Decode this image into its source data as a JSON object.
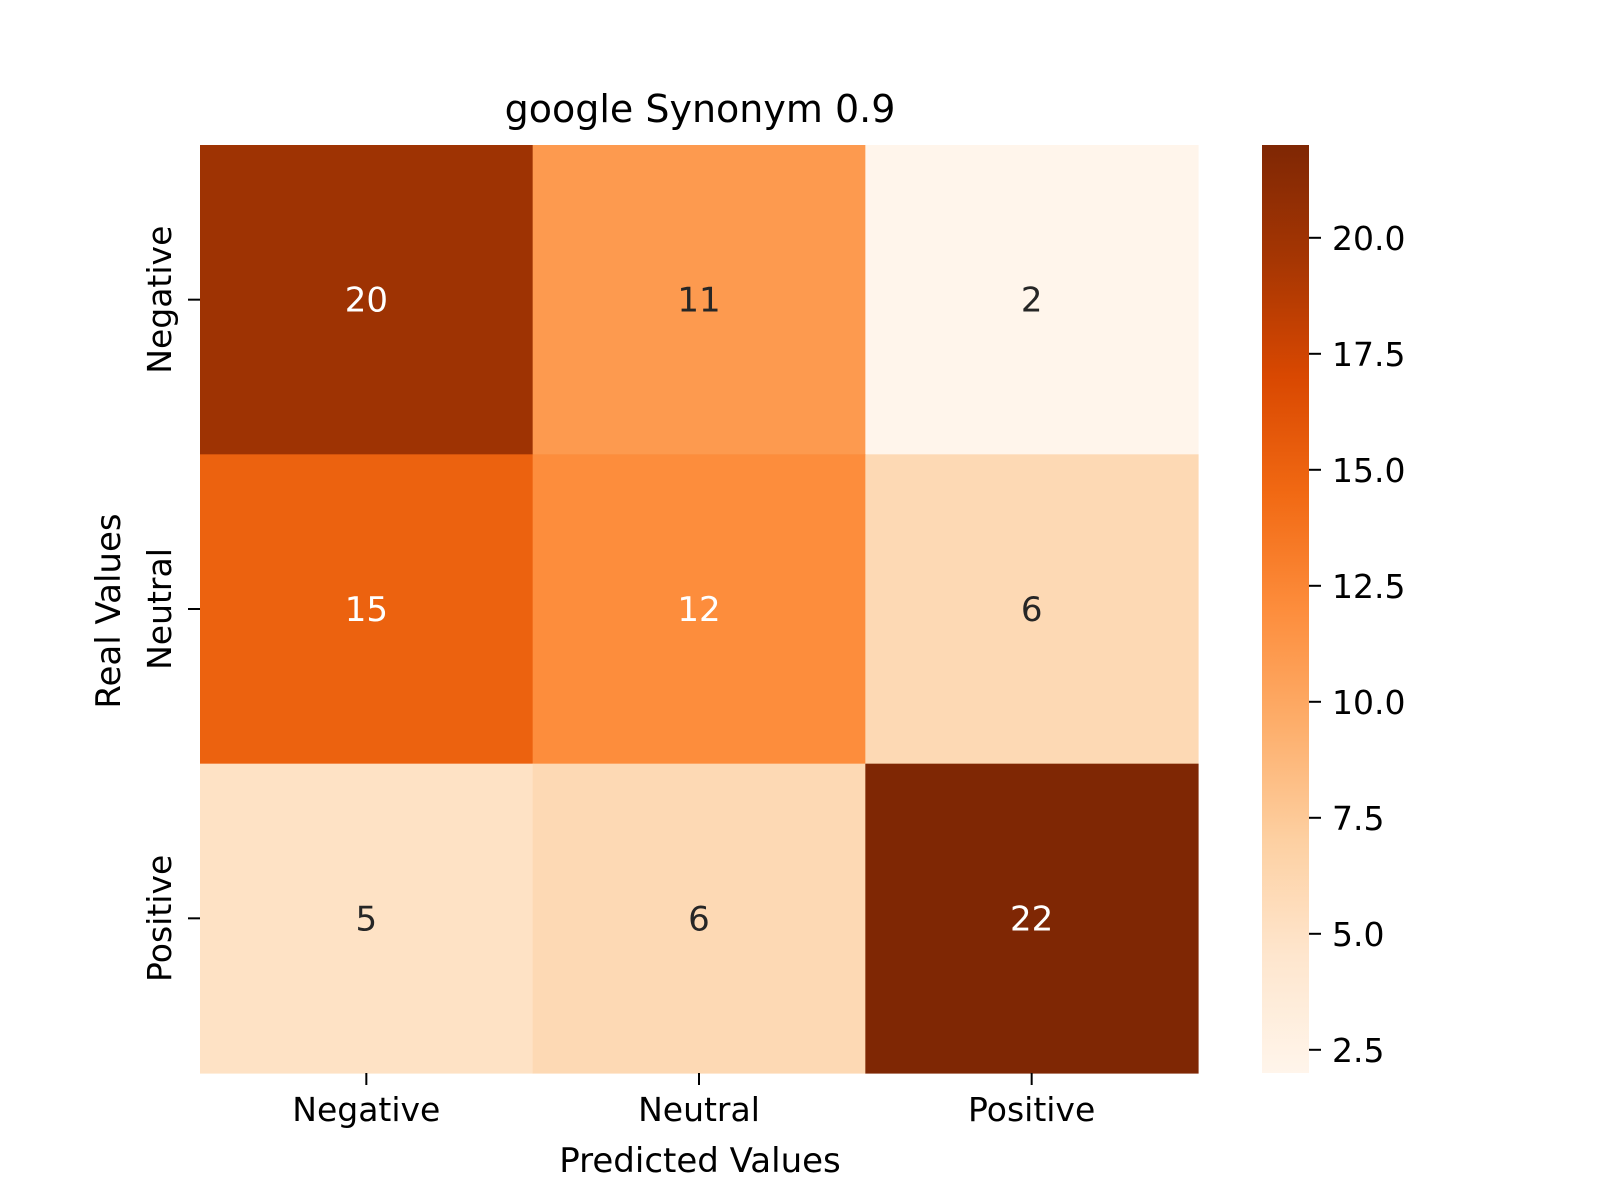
{
  "chart_data": {
    "type": "heatmap",
    "title": "google Synonym 0.9",
    "xlabel": "Predicted Values",
    "ylabel": "Real Values",
    "x_categories": [
      "Negative",
      "Neutral",
      "Positive"
    ],
    "y_categories": [
      "Negative",
      "Neutral",
      "Positive"
    ],
    "values": [
      [
        20,
        11,
        2
      ],
      [
        15,
        12,
        6
      ],
      [
        5,
        6,
        22
      ]
    ],
    "colormap": "Oranges",
    "colorbar": {
      "range": [
        2,
        22
      ],
      "ticks": [
        2.5,
        5.0,
        7.5,
        10.0,
        12.5,
        15.0,
        17.5,
        20.0
      ],
      "tick_labels": [
        "2.5",
        "5.0",
        "7.5",
        "10.0",
        "12.5",
        "15.0",
        "17.5",
        "20.0"
      ]
    },
    "annotation_colors": {
      "light": "#ffffff",
      "dark": "#262626"
    },
    "grid": false
  }
}
